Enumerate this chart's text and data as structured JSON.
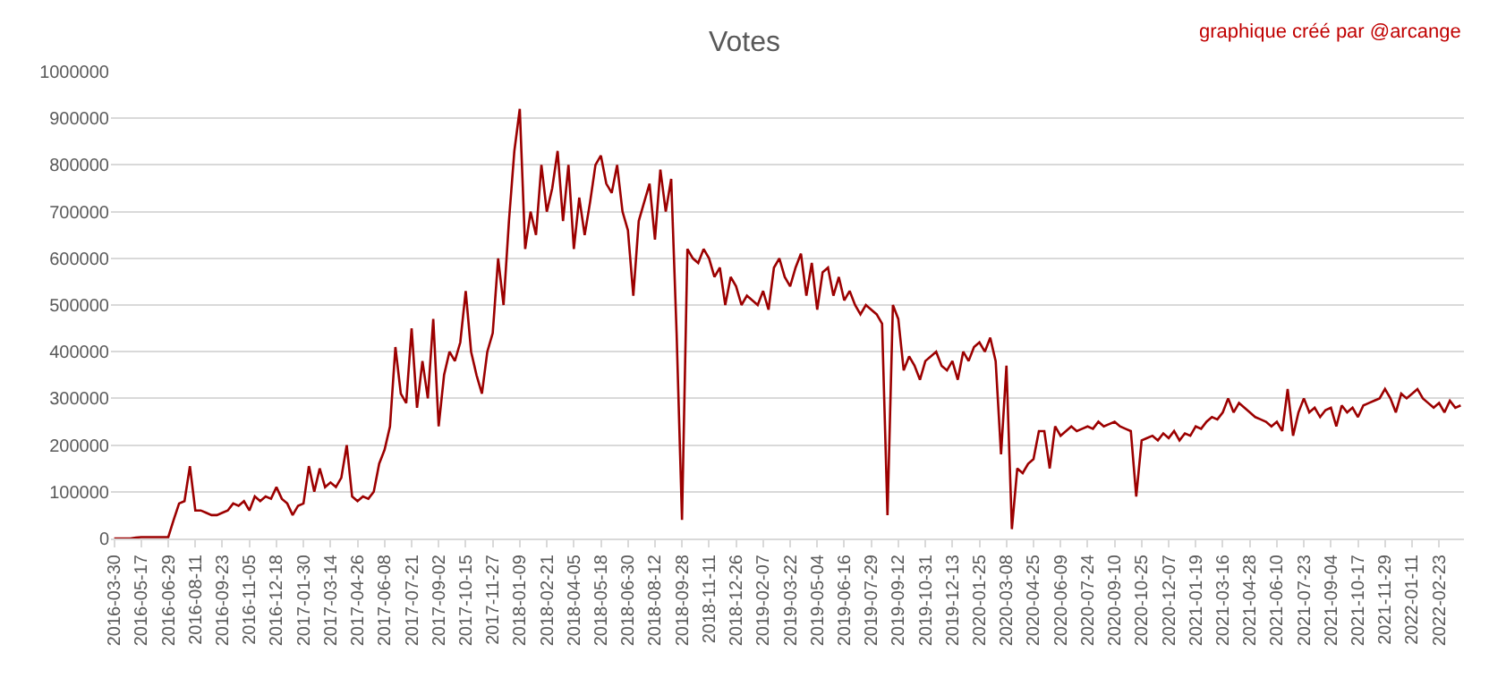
{
  "chart_data": {
    "type": "line",
    "title": "Votes",
    "annotations": [
      "graphique créé par @arcange"
    ],
    "categories": [
      "2016-03-30",
      null,
      null,
      null,
      null,
      "2016-05-17",
      null,
      null,
      null,
      null,
      "2016-06-29",
      null,
      null,
      null,
      null,
      "2016-08-11",
      null,
      null,
      null,
      null,
      "2016-09-23",
      null,
      null,
      null,
      null,
      "2016-11-05",
      null,
      null,
      null,
      null,
      "2016-12-18",
      null,
      null,
      null,
      null,
      "2017-01-30",
      null,
      null,
      null,
      null,
      "2017-03-14",
      null,
      null,
      null,
      null,
      "2017-04-26",
      null,
      null,
      null,
      null,
      "2017-06-08",
      null,
      null,
      null,
      null,
      "2017-07-21",
      null,
      null,
      null,
      null,
      "2017-09-02",
      null,
      null,
      null,
      null,
      "2017-10-15",
      null,
      null,
      null,
      null,
      "2017-11-27",
      null,
      null,
      null,
      null,
      "2018-01-09",
      null,
      null,
      null,
      null,
      "2018-02-21",
      null,
      null,
      null,
      null,
      "2018-04-05",
      null,
      null,
      null,
      null,
      "2018-05-18",
      null,
      null,
      null,
      null,
      "2018-06-30",
      null,
      null,
      null,
      null,
      "2018-08-12",
      null,
      null,
      null,
      null,
      "2018-09-28",
      null,
      null,
      null,
      null,
      "2018-11-11",
      null,
      null,
      null,
      null,
      "2018-12-26",
      null,
      null,
      null,
      null,
      "2019-02-07",
      null,
      null,
      null,
      null,
      "2019-03-22",
      null,
      null,
      null,
      null,
      "2019-05-04",
      null,
      null,
      null,
      null,
      "2019-06-16",
      null,
      null,
      null,
      null,
      "2019-07-29",
      null,
      null,
      null,
      null,
      "2019-09-12",
      null,
      null,
      null,
      null,
      "2019-10-31",
      null,
      null,
      null,
      null,
      "2019-12-13",
      null,
      null,
      null,
      null,
      "2020-01-25",
      null,
      null,
      null,
      null,
      "2020-03-08",
      null,
      null,
      null,
      null,
      "2020-04-25",
      null,
      null,
      null,
      null,
      "2020-06-09",
      null,
      null,
      null,
      null,
      "2020-07-24",
      null,
      null,
      null,
      null,
      "2020-09-10",
      null,
      null,
      null,
      null,
      "2020-10-25",
      null,
      null,
      null,
      null,
      "2020-12-07",
      null,
      null,
      null,
      null,
      "2021-01-19",
      null,
      null,
      null,
      null,
      "2021-03-16",
      null,
      null,
      null,
      null,
      "2021-04-28",
      null,
      null,
      null,
      null,
      "2021-06-10",
      null,
      null,
      null,
      null,
      "2021-07-23",
      null,
      null,
      null,
      null,
      "2021-09-04",
      null,
      null,
      null,
      null,
      "2021-10-17",
      null,
      null,
      null,
      null,
      "2021-11-29",
      null,
      null,
      null,
      null,
      "2022-01-11",
      null,
      null,
      null,
      null,
      "2022-02-23",
      null,
      null,
      null,
      null
    ],
    "series": [
      {
        "color": "#9c0000",
        "values": [
          0,
          0,
          0,
          0,
          2000,
          3000,
          3000,
          3000,
          3000,
          3000,
          3000,
          40000,
          75000,
          80000,
          155000,
          60000,
          60000,
          55000,
          50000,
          50000,
          55000,
          60000,
          75000,
          70000,
          80000,
          60000,
          90000,
          80000,
          90000,
          85000,
          110000,
          85000,
          75000,
          50000,
          70000,
          75000,
          155000,
          100000,
          150000,
          110000,
          120000,
          110000,
          130000,
          200000,
          90000,
          80000,
          90000,
          85000,
          100000,
          160000,
          190000,
          240000,
          410000,
          310000,
          290000,
          450000,
          280000,
          380000,
          300000,
          470000,
          240000,
          350000,
          400000,
          380000,
          420000,
          530000,
          400000,
          350000,
          310000,
          400000,
          440000,
          600000,
          500000,
          680000,
          830000,
          920000,
          620000,
          700000,
          650000,
          800000,
          700000,
          750000,
          830000,
          680000,
          800000,
          620000,
          730000,
          650000,
          720000,
          800000,
          820000,
          760000,
          740000,
          800000,
          700000,
          660000,
          520000,
          680000,
          720000,
          760000,
          640000,
          790000,
          700000,
          770000,
          440000,
          40000,
          620000,
          600000,
          590000,
          620000,
          600000,
          560000,
          580000,
          500000,
          560000,
          540000,
          500000,
          520000,
          510000,
          500000,
          530000,
          490000,
          580000,
          600000,
          560000,
          540000,
          580000,
          610000,
          520000,
          590000,
          490000,
          570000,
          580000,
          520000,
          560000,
          510000,
          530000,
          500000,
          480000,
          500000,
          490000,
          480000,
          460000,
          50000,
          500000,
          470000,
          360000,
          390000,
          370000,
          340000,
          380000,
          390000,
          400000,
          370000,
          360000,
          380000,
          340000,
          400000,
          380000,
          410000,
          420000,
          400000,
          430000,
          380000,
          180000,
          370000,
          20000,
          150000,
          140000,
          160000,
          170000,
          230000,
          230000,
          150000,
          240000,
          220000,
          230000,
          240000,
          230000,
          235000,
          240000,
          235000,
          250000,
          240000,
          245000,
          250000,
          240000,
          235000,
          230000,
          90000,
          210000,
          215000,
          220000,
          210000,
          225000,
          215000,
          230000,
          210000,
          225000,
          220000,
          240000,
          235000,
          250000,
          260000,
          255000,
          270000,
          300000,
          270000,
          290000,
          280000,
          270000,
          260000,
          255000,
          250000,
          240000,
          250000,
          230000,
          320000,
          220000,
          270000,
          300000,
          270000,
          280000,
          260000,
          275000,
          280000,
          240000,
          285000,
          270000,
          280000,
          260000,
          285000,
          290000,
          295000,
          300000,
          320000,
          300000,
          270000,
          310000,
          300000,
          310000,
          320000,
          300000,
          290000,
          280000,
          290000,
          270000,
          295000,
          280000,
          285000
        ]
      }
    ],
    "ylim": [
      0,
      1000000
    ],
    "yticks": [
      0,
      100000,
      200000,
      300000,
      400000,
      500000,
      600000,
      700000,
      800000,
      900000,
      1000000
    ],
    "grid": "y",
    "marker": "none",
    "line_style": "solid"
  }
}
